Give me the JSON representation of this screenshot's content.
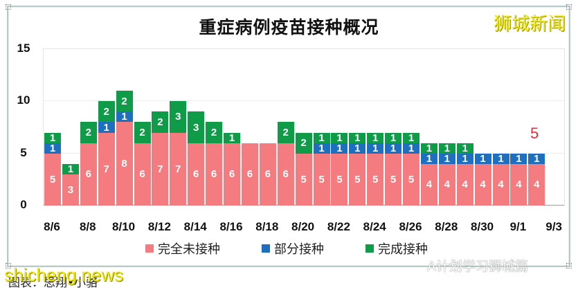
{
  "chart_data": {
    "type": "bar",
    "stacked": true,
    "title": "重症病例疫苗接种概况",
    "xlabel": "",
    "ylabel": "",
    "ylim": [
      0,
      15
    ],
    "yticks": [
      0,
      5,
      10,
      15
    ],
    "grid": true,
    "legend_position": "bottom",
    "categories": [
      "8/6",
      "8/7",
      "8/8",
      "8/9",
      "8/10",
      "8/11",
      "8/12",
      "8/13",
      "8/14",
      "8/15",
      "8/16",
      "8/17",
      "8/18",
      "8/19",
      "8/20",
      "8/21",
      "8/22",
      "8/23",
      "8/24",
      "8/25",
      "8/26",
      "8/27",
      "8/28",
      "8/29",
      "8/30",
      "8/31",
      "9/1",
      "9/2",
      "9/3"
    ],
    "xtick_labels": [
      "8/6",
      "8/8",
      "8/10",
      "8/12",
      "8/14",
      "8/16",
      "8/18",
      "8/20",
      "8/22",
      "8/24",
      "8/26",
      "8/28",
      "8/30",
      "9/1",
      "9/3"
    ],
    "series": [
      {
        "name": "完全未接种",
        "color": "#f47b7f",
        "values": [
          5,
          3,
          6,
          7,
          8,
          6,
          7,
          7,
          6,
          6,
          6,
          6,
          6,
          6,
          5,
          5,
          5,
          5,
          5,
          5,
          5,
          4,
          4,
          4,
          4,
          4,
          4,
          4,
          null
        ]
      },
      {
        "name": "部分接种",
        "color": "#1e6fbf",
        "values": [
          1,
          0,
          0,
          1,
          1,
          0,
          0,
          0,
          0,
          0,
          0,
          0,
          0,
          0,
          0,
          1,
          1,
          1,
          1,
          1,
          1,
          1,
          1,
          1,
          1,
          1,
          1,
          1,
          null
        ]
      },
      {
        "name": "完成接种",
        "color": "#0f9b48",
        "values": [
          1,
          1,
          2,
          2,
          2,
          2,
          2,
          3,
          3,
          2,
          1,
          0,
          0,
          2,
          2,
          1,
          1,
          1,
          1,
          1,
          1,
          1,
          1,
          1,
          0,
          0,
          0,
          0,
          null
        ]
      }
    ],
    "annotations": [
      {
        "category": "9/3",
        "text": "5",
        "color": "#e0303a"
      }
    ]
  },
  "header": {
    "title": "重症病例疫苗接种概况",
    "brand": "狮城新闻"
  },
  "legend": [
    {
      "label": "完全未接种",
      "color": "#f47b7f"
    },
    {
      "label": "部分接种",
      "color": "#1e6fbf"
    },
    {
      "label": "完成接种",
      "color": "#0f9b48"
    }
  ],
  "annotation_text": "5",
  "caption": "图表：思翔•小骆",
  "watermarks": {
    "site": "shicheng.news",
    "wechat": "A计划学习狮城篇"
  }
}
